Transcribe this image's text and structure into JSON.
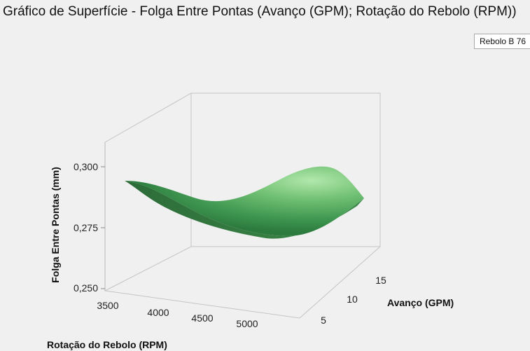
{
  "chart_data": {
    "type": "surface",
    "title": "Gráfico de Superfície - Folga Entre Pontas (Avanço (GPM); Rotação do Rebolo (RPM))",
    "legend": [
      "Rebolo B 76"
    ],
    "legend_placement": "top-right",
    "z_axis": {
      "label": "Folga Entre Pontas (mm)",
      "range": [
        0.25,
        0.31
      ],
      "ticks": [
        "0,250",
        "0,275",
        "0,300"
      ]
    },
    "x_axis": {
      "label": "Rotação do Rebolo (RPM)",
      "range": [
        3500,
        5300
      ],
      "ticks": [
        "3500",
        "4000",
        "4500",
        "5000"
      ]
    },
    "y_axis": {
      "label": "Avanço (GPM)",
      "range": [
        4,
        16
      ],
      "ticks": [
        "5",
        "10",
        "15"
      ]
    },
    "surface_color": "#4caf50",
    "grid": false
  }
}
